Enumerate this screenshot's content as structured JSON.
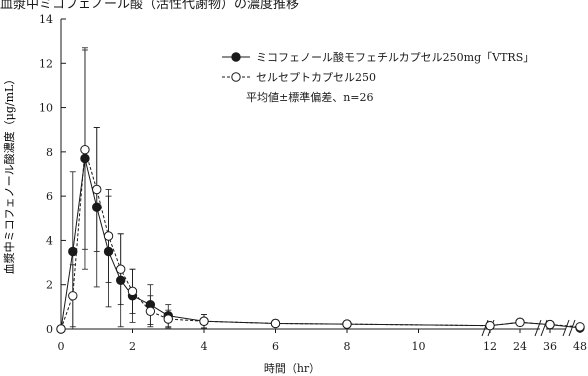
{
  "chart_data": {
    "type": "line",
    "title": "血漿中ミコフェノール酸（活性代謝物）の濃度推移",
    "xlabel": "時間（hr）",
    "ylabel": "血漿中ミコフェノール酸濃度（μg/mL）",
    "x": [
      0,
      0.33,
      0.67,
      1,
      1.33,
      1.67,
      2,
      2.5,
      3,
      4,
      6,
      8,
      12,
      24,
      36,
      48
    ],
    "x_tick_labels": [
      "0",
      "2",
      "4",
      "6",
      "8",
      "10",
      "12",
      "24",
      "36",
      "48"
    ],
    "ylim": [
      0,
      14
    ],
    "y_ticks": [
      0,
      2,
      4,
      6,
      8,
      10,
      12,
      14
    ],
    "axis_break": "between 12 and 24 hr",
    "series": [
      {
        "name": "ミコフェノール酸モフェチルカプセル250mg「VTRS」",
        "marker": "filled-circle",
        "line": "solid",
        "values": [
          0,
          3.5,
          7.7,
          5.5,
          3.5,
          2.2,
          1.5,
          1.1,
          0.6,
          0.35,
          0.25,
          0.22,
          0.15,
          0.3,
          0.2,
          0.05
        ],
        "sd": [
          0,
          3.6,
          5.0,
          3.6,
          2.5,
          2.1,
          1.2,
          0.9,
          0.5,
          0.3,
          0.15,
          0.1,
          0.08,
          0.15,
          0.1,
          0.05
        ]
      },
      {
        "name": "セルセプトカプセル250",
        "marker": "open-circle",
        "line": "dashed",
        "values": [
          0,
          1.5,
          8.1,
          6.3,
          4.2,
          2.7,
          1.7,
          0.8,
          0.45,
          0.35,
          0.25,
          0.22,
          0.15,
          0.3,
          0.2,
          0.1
        ],
        "sd": [
          0,
          1.4,
          4.5,
          2.8,
          2.1,
          1.6,
          1.0,
          0.7,
          0.4,
          0.3,
          0.15,
          0.1,
          0.08,
          0.15,
          0.1,
          0.05
        ]
      }
    ],
    "note": "平均値±標準偏差、n=26",
    "legend_position": "top-right",
    "colors": {
      "axis": "#1a1a1a",
      "series": "#1a1a1a",
      "open_fill": "#ffffff"
    }
  }
}
